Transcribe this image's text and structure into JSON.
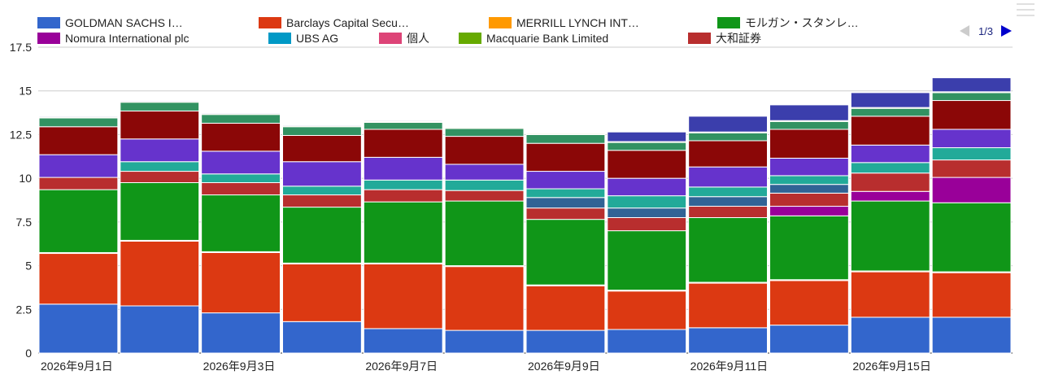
{
  "chart_data": {
    "type": "bar",
    "stacked": true,
    "title": "",
    "xlabel": "",
    "ylabel": "",
    "ylim": [
      0,
      17.5
    ],
    "yticks": [
      "0",
      "2.5",
      "5",
      "7.5",
      "10",
      "12.5",
      "15",
      "17.5"
    ],
    "grid": true,
    "legend_position": "top",
    "legend_page": "1/3",
    "categories": [
      "2026年9月1日",
      "",
      "2026年9月3日",
      "",
      "2026年9月7日",
      "",
      "2026年9月9日",
      "",
      "2026年9月11日",
      "",
      "2026年9月15日",
      ""
    ],
    "legend": [
      {
        "label": "GOLDMAN SACHS I…",
        "color": "#3366cc"
      },
      {
        "label": "Barclays Capital Secu…",
        "color": "#dc3912"
      },
      {
        "label": "MERRILL LYNCH INT…",
        "color": "#ff9900"
      },
      {
        "label": "モルガン・スタンレ…",
        "color": "#109618"
      },
      {
        "label": "Nomura International plc",
        "color": "#990099"
      },
      {
        "label": "UBS AG",
        "color": "#0099c6"
      },
      {
        "label": "個人",
        "color": "#dd4477"
      },
      {
        "label": "Macquarie Bank Limited",
        "color": "#66aa00"
      },
      {
        "label": "大和証券",
        "color": "#b82e2e"
      }
    ],
    "series": [
      {
        "name": "GOLDMAN SACHS I…",
        "color": "#3366cc",
        "values": [
          2.8,
          2.7,
          2.3,
          1.8,
          1.4,
          1.3,
          1.3,
          1.35,
          1.45,
          1.6,
          2.05,
          2.05
        ]
      },
      {
        "name": "Barclays Capital Secu…",
        "color": "#dc3912",
        "values": [
          2.9,
          3.7,
          3.45,
          3.3,
          3.7,
          3.65,
          2.55,
          2.2,
          2.55,
          2.55,
          2.6,
          2.55
        ]
      },
      {
        "name": "MERRILL LYNCH INT…",
        "color": "#ff9900",
        "values": [
          0.05,
          0.05,
          0.05,
          0.05,
          0.05,
          0.05,
          0.05,
          0.05,
          0.05,
          0.05,
          0.05,
          0.05
        ]
      },
      {
        "name": "モルガン・スタンレ…",
        "color": "#109618",
        "values": [
          3.6,
          3.3,
          3.25,
          3.2,
          3.5,
          3.7,
          3.75,
          3.4,
          3.7,
          3.65,
          4.0,
          3.95
        ]
      },
      {
        "name": "Nomura International plc",
        "color": "#990099",
        "values": [
          0,
          0,
          0,
          0,
          0,
          0,
          0,
          0,
          0,
          0.55,
          0.55,
          1.45
        ]
      },
      {
        "name": "",
        "color": "#b82e2e",
        "values": [
          0.7,
          0.65,
          0.7,
          0.7,
          0.7,
          0.6,
          0.65,
          0.75,
          0.65,
          0.75,
          1.05,
          1.0
        ]
      },
      {
        "name": "",
        "color": "#316395",
        "values": [
          0,
          0,
          0,
          0,
          0,
          0,
          0.6,
          0.55,
          0.55,
          0.5,
          0,
          0
        ]
      },
      {
        "name": "",
        "color": "#22aa99",
        "values": [
          0,
          0.55,
          0.5,
          0.5,
          0.55,
          0.6,
          0.5,
          0.7,
          0.55,
          0.5,
          0.6,
          0.7
        ]
      },
      {
        "name": "",
        "color": "#6633cc",
        "values": [
          1.3,
          1.3,
          1.3,
          1.4,
          1.3,
          0.9,
          1.0,
          1.0,
          1.15,
          1.0,
          1.0,
          1.05
        ]
      },
      {
        "name": "",
        "color": "#8b0707",
        "values": [
          1.6,
          1.6,
          1.6,
          1.5,
          1.6,
          1.6,
          1.6,
          1.6,
          1.5,
          1.65,
          1.65,
          1.65
        ]
      },
      {
        "name": "",
        "color": "#329262",
        "values": [
          0.5,
          0.5,
          0.5,
          0.5,
          0.4,
          0.45,
          0.5,
          0.45,
          0.45,
          0.45,
          0.45,
          0.45
        ]
      },
      {
        "name": "",
        "color": "#aaaa11",
        "values": [
          0.05,
          0.05,
          0.05,
          0.05,
          0.05,
          0.05,
          0.05,
          0.05,
          0.05,
          0.05,
          0.05,
          0.05
        ]
      },
      {
        "name": "",
        "color": "#3b3eac",
        "values": [
          0.05,
          0.05,
          0.05,
          0.05,
          0.05,
          0,
          0,
          0.55,
          0.9,
          0.9,
          0.85,
          0.8
        ]
      }
    ]
  }
}
